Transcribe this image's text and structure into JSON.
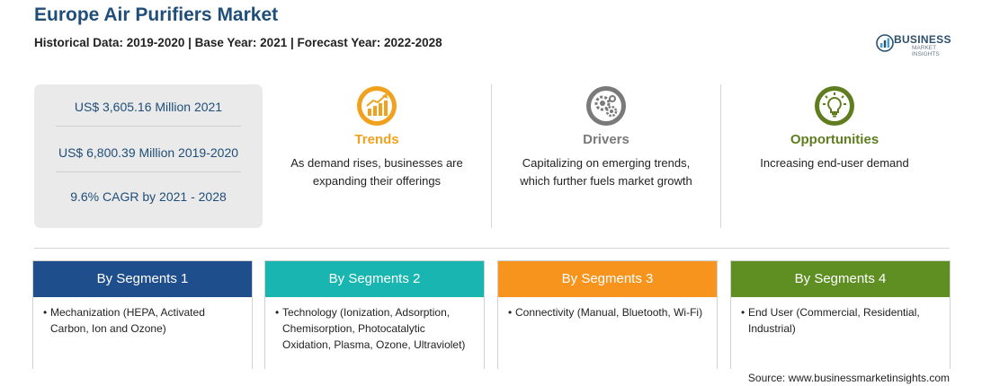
{
  "header": {
    "title": "Europe Air Purifiers Market",
    "subtitle": "Historical Data: 2019-2020 | Base Year: 2021 | Forecast Year: 2022-2028"
  },
  "logo": {
    "name": "BUSINESS",
    "tagline": "MARKET INSIGHTS"
  },
  "stats": [
    "US$ 3,605.16 Million 2021",
    "US$ 6,800.39 Million 2019-2020",
    "9.6% CAGR by 2021 - 2028"
  ],
  "factors": [
    {
      "title": "Trends",
      "desc_line1": "As demand rises, businesses are",
      "desc_line2": "expanding their offerings",
      "color": "#f0a21e",
      "icon": "growth-chart-icon"
    },
    {
      "title": "Drivers",
      "desc_line1": "Capitalizing on emerging trends,",
      "desc_line2": "which further fuels market growth",
      "color": "#7a7a7a",
      "icon": "gears-icon"
    },
    {
      "title": "Opportunities",
      "desc_line1": "Increasing end-user demand",
      "desc_line2": "",
      "color": "#5f7d1f",
      "icon": "lightbulb-icon"
    }
  ],
  "segments": [
    {
      "title": "By Segments 1",
      "color": "#1f4e8c",
      "text": "Mechanization (HEPA, Activated Carbon, Ion and Ozone)"
    },
    {
      "title": "By Segments 2",
      "color": "#19b5b0",
      "text": "Technology (Ionization, Adsorption, Chemisorption, Photocatalytic Oxidation, Plasma, Ozone, Ultraviolet)"
    },
    {
      "title": "By Segments 3",
      "color": "#f7941d",
      "text": "Connectivity (Manual, Bluetooth, Wi-Fi)"
    },
    {
      "title": "By Segments 4",
      "color": "#5f8f23",
      "text": "End User (Commercial, Residential, Industrial)"
    }
  ],
  "source": "Source: www.businessmarketinsights.com"
}
